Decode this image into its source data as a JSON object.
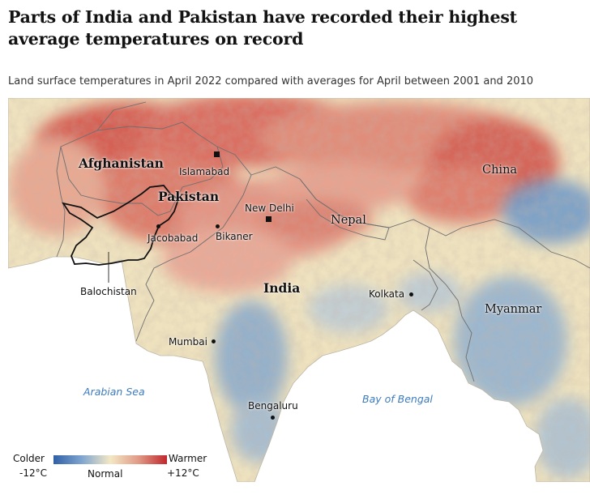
{
  "headline": "Parts of India and Pakistan have recorded their highest average temperatures on record",
  "standfirst": "Land surface temperatures in April 2022 compared with averages for April between 2001 and 2010",
  "map": {
    "countries": {
      "afghanistan": "Afghanistan",
      "pakistan": "Pakistan",
      "india": "India",
      "nepal": "Nepal",
      "china": "China",
      "myanmar": "Myanmar"
    },
    "cities": {
      "islamabad": "Islamabad",
      "new_delhi": "New Delhi",
      "jacobabad": "Jacobabad",
      "bikaner": "Bikaner",
      "balochistan": "Balochistan",
      "kolkata": "Kolkata",
      "mumbai": "Mumbai",
      "bengaluru": "Bengaluru"
    },
    "seas": {
      "arabian_sea": "Arabian Sea",
      "bay_of_bengal": "Bay of Bengal"
    }
  },
  "legend": {
    "colder": "Colder",
    "warmer": "Warmer",
    "min_value": "-12°C",
    "mid_value": "Normal",
    "max_value": "+12°C",
    "colors": {
      "cold": "#2f5fa7",
      "neutral": "#f3e8c4",
      "warm": "#c0272d"
    }
  },
  "colors": {
    "sea": "#ffffff",
    "land_neutral": "#efe5c2",
    "hot": "#d5524a",
    "cool": "#5f8fc5",
    "border": "#6f6f6f",
    "balochistan_outline": "#111111"
  }
}
